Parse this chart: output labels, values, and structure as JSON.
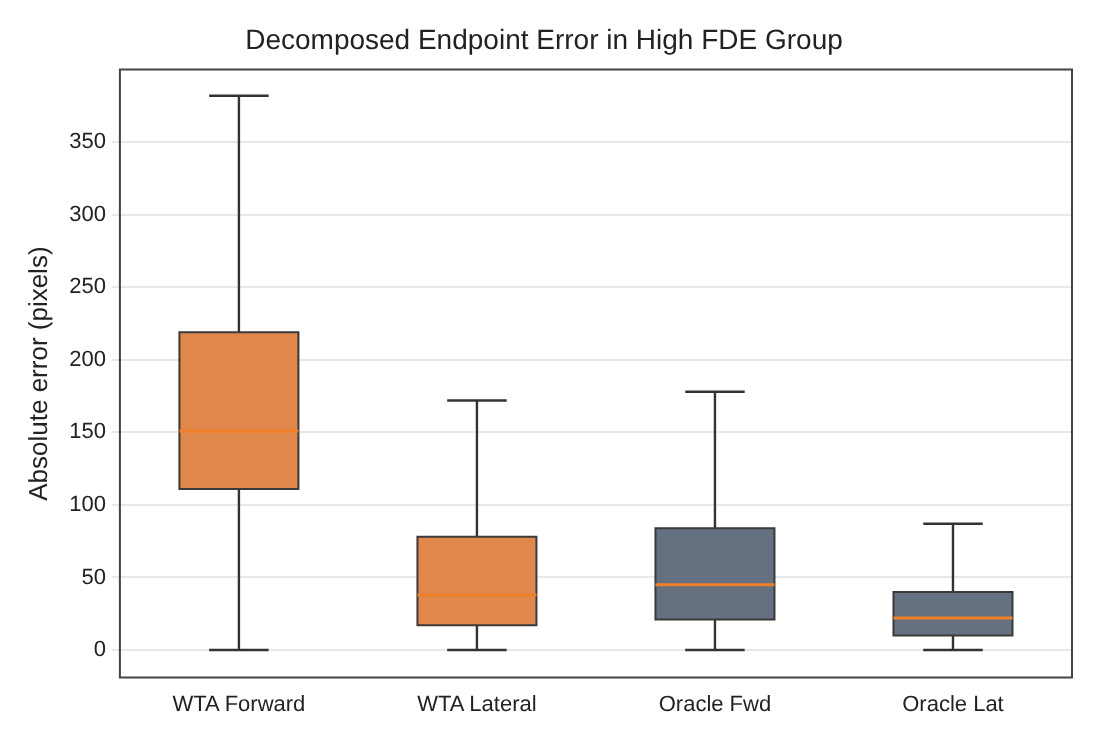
{
  "chart_data": {
    "type": "box",
    "title": "Decomposed Endpoint Error in High FDE Group",
    "ylabel": "Absolute error (pixels)",
    "categories": [
      "WTA Forward",
      "WTA Lateral",
      "Oracle Fwd",
      "Oracle Lat"
    ],
    "colors": [
      "#e0874c",
      "#e0874c",
      "#657080",
      "#657080"
    ],
    "boxes": [
      {
        "low": 0,
        "q1": 111,
        "median": 151,
        "q3": 219,
        "high": 382
      },
      {
        "low": 0,
        "q1": 17,
        "median": 38,
        "q3": 78,
        "high": 172
      },
      {
        "low": 0,
        "q1": 21,
        "median": 45,
        "q3": 84,
        "high": 178
      },
      {
        "low": 0,
        "q1": 10,
        "median": 22,
        "q3": 40,
        "high": 87
      }
    ],
    "ylim": [
      -19,
      400
    ],
    "yticks": [
      0,
      50,
      100,
      150,
      200,
      250,
      300,
      350
    ],
    "grid": "y",
    "legend": false
  }
}
